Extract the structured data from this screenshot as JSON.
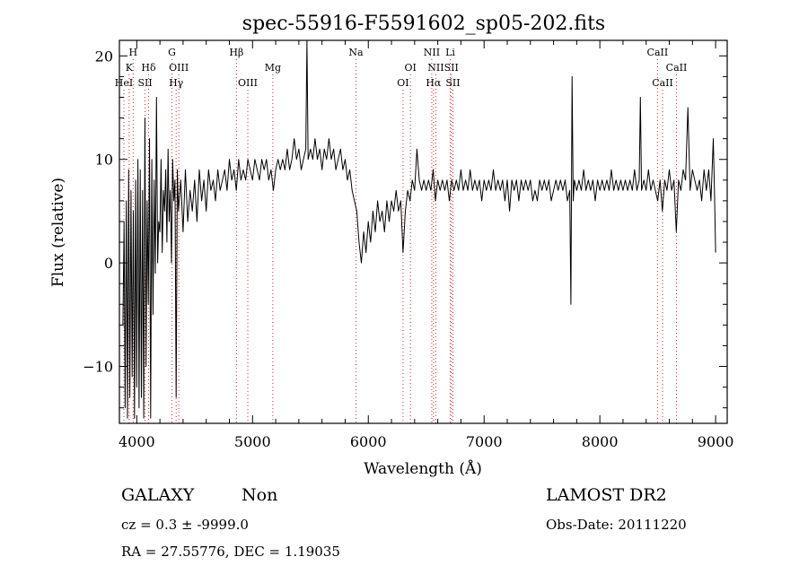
{
  "chart_data": {
    "type": "line",
    "title": "spec-55916-F5591602_sp05-202.fits",
    "xlabel": "Wavelength (Å)",
    "ylabel": "Flux (relative)",
    "xlim": [
      3850,
      9100
    ],
    "ylim": [
      -15.5,
      21.5
    ],
    "xticks": [
      {
        "value": 4000,
        "label": "4000"
      },
      {
        "value": 5000,
        "label": "5000"
      },
      {
        "value": 6000,
        "label": "6000"
      },
      {
        "value": 7000,
        "label": "7000"
      },
      {
        "value": 8000,
        "label": "8000"
      },
      {
        "value": 9000,
        "label": "9000"
      }
    ],
    "yticks": [
      {
        "value": -10,
        "label": "−10"
      },
      {
        "value": 0,
        "label": "0"
      },
      {
        "value": 10,
        "label": "10"
      },
      {
        "value": 20,
        "label": "20"
      }
    ],
    "grid": false,
    "series": [
      {
        "color": "#000000",
        "points": [
          [
            3880,
            -6
          ],
          [
            3890,
            4
          ],
          [
            3900,
            -14
          ],
          [
            3910,
            6
          ],
          [
            3920,
            -15
          ],
          [
            3930,
            9
          ],
          [
            3940,
            -13
          ],
          [
            3950,
            7
          ],
          [
            3960,
            -11
          ],
          [
            3970,
            5
          ],
          [
            3980,
            -15
          ],
          [
            3990,
            8
          ],
          [
            4000,
            -12
          ],
          [
            4010,
            10
          ],
          [
            4020,
            -14
          ],
          [
            4030,
            9
          ],
          [
            4040,
            -13
          ],
          [
            4050,
            7
          ],
          [
            4060,
            -15
          ],
          [
            4070,
            14
          ],
          [
            4080,
            -10
          ],
          [
            4090,
            6
          ],
          [
            4100,
            -4
          ],
          [
            4110,
            12
          ],
          [
            4120,
            -15
          ],
          [
            4130,
            10
          ],
          [
            4140,
            -5
          ],
          [
            4150,
            8
          ],
          [
            4160,
            -1
          ],
          [
            4170,
            16
          ],
          [
            4180,
            0
          ],
          [
            4190,
            4
          ],
          [
            4200,
            3
          ],
          [
            4210,
            10
          ],
          [
            4220,
            1
          ],
          [
            4230,
            7
          ],
          [
            4240,
            5
          ],
          [
            4250,
            9
          ],
          [
            4260,
            2
          ],
          [
            4270,
            11
          ],
          [
            4280,
            4
          ],
          [
            4290,
            7
          ],
          [
            4300,
            0
          ],
          [
            4310,
            10
          ],
          [
            4320,
            6
          ],
          [
            4330,
            8
          ],
          [
            4340,
            -13
          ],
          [
            4350,
            9
          ],
          [
            4360,
            5
          ],
          [
            4380,
            8
          ],
          [
            4400,
            3
          ],
          [
            4420,
            9
          ],
          [
            4440,
            4
          ],
          [
            4460,
            7
          ],
          [
            4480,
            5
          ],
          [
            4500,
            8
          ],
          [
            4520,
            4
          ],
          [
            4540,
            9
          ],
          [
            4560,
            6
          ],
          [
            4580,
            8
          ],
          [
            4600,
            5
          ],
          [
            4620,
            9
          ],
          [
            4640,
            7
          ],
          [
            4660,
            8
          ],
          [
            4680,
            6
          ],
          [
            4700,
            9
          ],
          [
            4720,
            7
          ],
          [
            4740,
            8
          ],
          [
            4760,
            9
          ],
          [
            4780,
            7
          ],
          [
            4800,
            10
          ],
          [
            4820,
            8
          ],
          [
            4840,
            9
          ],
          [
            4860,
            7
          ],
          [
            4880,
            10
          ],
          [
            4900,
            8
          ],
          [
            4920,
            9
          ],
          [
            4940,
            8
          ],
          [
            4960,
            10
          ],
          [
            4980,
            9
          ],
          [
            5000,
            8
          ],
          [
            5020,
            10
          ],
          [
            5040,
            9
          ],
          [
            5060,
            8
          ],
          [
            5080,
            10
          ],
          [
            5100,
            9
          ],
          [
            5120,
            10
          ],
          [
            5140,
            8
          ],
          [
            5160,
            9
          ],
          [
            5180,
            7
          ],
          [
            5200,
            9
          ],
          [
            5220,
            10
          ],
          [
            5240,
            9
          ],
          [
            5260,
            10
          ],
          [
            5280,
            9
          ],
          [
            5300,
            11
          ],
          [
            5320,
            9
          ],
          [
            5340,
            10
          ],
          [
            5360,
            12
          ],
          [
            5380,
            10
          ],
          [
            5400,
            11
          ],
          [
            5420,
            9
          ],
          [
            5440,
            10
          ],
          [
            5460,
            11
          ],
          [
            5470,
            21.5
          ],
          [
            5480,
            10
          ],
          [
            5500,
            11
          ],
          [
            5520,
            10
          ],
          [
            5540,
            12
          ],
          [
            5560,
            10
          ],
          [
            5580,
            11
          ],
          [
            5600,
            9
          ],
          [
            5620,
            11
          ],
          [
            5640,
            10
          ],
          [
            5660,
            12
          ],
          [
            5680,
            10
          ],
          [
            5700,
            11
          ],
          [
            5720,
            9
          ],
          [
            5740,
            10
          ],
          [
            5760,
            11
          ],
          [
            5780,
            9
          ],
          [
            5800,
            10
          ],
          [
            5820,
            8
          ],
          [
            5840,
            9
          ],
          [
            5860,
            7
          ],
          [
            5880,
            6
          ],
          [
            5900,
            5
          ],
          [
            5920,
            2
          ],
          [
            5940,
            0
          ],
          [
            5960,
            3
          ],
          [
            5980,
            1
          ],
          [
            6000,
            4
          ],
          [
            6020,
            2
          ],
          [
            6040,
            5
          ],
          [
            6060,
            3
          ],
          [
            6080,
            6
          ],
          [
            6100,
            4
          ],
          [
            6120,
            5
          ],
          [
            6140,
            3
          ],
          [
            6160,
            6
          ],
          [
            6180,
            4
          ],
          [
            6200,
            6
          ],
          [
            6220,
            5
          ],
          [
            6240,
            7
          ],
          [
            6260,
            5
          ],
          [
            6280,
            6
          ],
          [
            6300,
            1
          ],
          [
            6320,
            5
          ],
          [
            6340,
            7
          ],
          [
            6360,
            6
          ],
          [
            6380,
            8
          ],
          [
            6400,
            7
          ],
          [
            6420,
            11
          ],
          [
            6440,
            8
          ],
          [
            6460,
            7
          ],
          [
            6480,
            8
          ],
          [
            6500,
            7
          ],
          [
            6520,
            8
          ],
          [
            6540,
            7
          ],
          [
            6560,
            9
          ],
          [
            6580,
            6
          ],
          [
            6600,
            8
          ],
          [
            6620,
            7
          ],
          [
            6640,
            8
          ],
          [
            6660,
            7
          ],
          [
            6680,
            8
          ],
          [
            6700,
            6
          ],
          [
            6720,
            8
          ],
          [
            6740,
            7
          ],
          [
            6760,
            8
          ],
          [
            6780,
            7
          ],
          [
            6800,
            9
          ],
          [
            6820,
            7
          ],
          [
            6840,
            8
          ],
          [
            6860,
            7
          ],
          [
            6880,
            9
          ],
          [
            6900,
            7
          ],
          [
            6920,
            8
          ],
          [
            6940,
            7
          ],
          [
            6960,
            8
          ],
          [
            6980,
            6
          ],
          [
            7000,
            8
          ],
          [
            7020,
            7
          ],
          [
            7040,
            8
          ],
          [
            7060,
            7
          ],
          [
            7080,
            9
          ],
          [
            7100,
            7
          ],
          [
            7120,
            8
          ],
          [
            7140,
            7
          ],
          [
            7160,
            8
          ],
          [
            7180,
            6
          ],
          [
            7200,
            8
          ],
          [
            7220,
            5
          ],
          [
            7240,
            8
          ],
          [
            7260,
            7
          ],
          [
            7280,
            8
          ],
          [
            7300,
            6
          ],
          [
            7320,
            8
          ],
          [
            7340,
            7
          ],
          [
            7360,
            8
          ],
          [
            7380,
            7
          ],
          [
            7400,
            8
          ],
          [
            7420,
            6
          ],
          [
            7440,
            7
          ],
          [
            7460,
            6
          ],
          [
            7480,
            8
          ],
          [
            7500,
            7
          ],
          [
            7520,
            8
          ],
          [
            7540,
            7
          ],
          [
            7560,
            8
          ],
          [
            7580,
            6
          ],
          [
            7600,
            7
          ],
          [
            7620,
            8
          ],
          [
            7640,
            7
          ],
          [
            7660,
            8
          ],
          [
            7680,
            7
          ],
          [
            7700,
            8
          ],
          [
            7720,
            6
          ],
          [
            7740,
            7
          ],
          [
            7750,
            -4
          ],
          [
            7760,
            18
          ],
          [
            7770,
            6
          ],
          [
            7780,
            8
          ],
          [
            7800,
            7
          ],
          [
            7820,
            8
          ],
          [
            7840,
            7
          ],
          [
            7860,
            9
          ],
          [
            7880,
            7
          ],
          [
            7900,
            8
          ],
          [
            7920,
            7
          ],
          [
            7940,
            8
          ],
          [
            7960,
            6
          ],
          [
            7980,
            8
          ],
          [
            8000,
            7
          ],
          [
            8020,
            8
          ],
          [
            8040,
            7
          ],
          [
            8060,
            8
          ],
          [
            8080,
            7
          ],
          [
            8100,
            9
          ],
          [
            8120,
            7
          ],
          [
            8140,
            8
          ],
          [
            8160,
            7
          ],
          [
            8180,
            8
          ],
          [
            8200,
            7
          ],
          [
            8220,
            8
          ],
          [
            8240,
            7
          ],
          [
            8260,
            8
          ],
          [
            8280,
            7
          ],
          [
            8300,
            9
          ],
          [
            8320,
            7
          ],
          [
            8340,
            8
          ],
          [
            8350,
            16
          ],
          [
            8360,
            7
          ],
          [
            8380,
            8
          ],
          [
            8400,
            7
          ],
          [
            8420,
            9
          ],
          [
            8440,
            7
          ],
          [
            8460,
            8
          ],
          [
            8480,
            7
          ],
          [
            8500,
            6
          ],
          [
            8520,
            8
          ],
          [
            8540,
            5
          ],
          [
            8560,
            8
          ],
          [
            8580,
            7
          ],
          [
            8600,
            9
          ],
          [
            8620,
            7
          ],
          [
            8640,
            8
          ],
          [
            8660,
            3
          ],
          [
            8680,
            8
          ],
          [
            8700,
            7
          ],
          [
            8720,
            9
          ],
          [
            8740,
            8
          ],
          [
            8760,
            15
          ],
          [
            8780,
            7
          ],
          [
            8800,
            9
          ],
          [
            8820,
            8
          ],
          [
            8840,
            7
          ],
          [
            8860,
            8
          ],
          [
            8880,
            6
          ],
          [
            8900,
            9
          ],
          [
            8920,
            7
          ],
          [
            8940,
            9
          ],
          [
            8960,
            6
          ],
          [
            8980,
            12
          ],
          [
            8990,
            7
          ],
          [
            9000,
            1
          ]
        ]
      }
    ],
    "line_markers": {
      "color": "#d62728",
      "lines": [
        {
          "wl": 3889,
          "label": "HeI",
          "row": 3
        },
        {
          "wl": 3934,
          "label": "K",
          "row": 2
        },
        {
          "wl": 3969,
          "label": "H",
          "row": 1
        },
        {
          "wl": 4072,
          "label": "SII",
          "row": 3
        },
        {
          "wl": 4102,
          "label": "Hδ",
          "row": 2
        },
        {
          "wl": 4304,
          "label": "G",
          "row": 1
        },
        {
          "wl": 4340,
          "label": "Hγ",
          "row": 3
        },
        {
          "wl": 4363,
          "label": "OIII",
          "row": 2
        },
        {
          "wl": 4861,
          "label": "Hβ",
          "row": 1
        },
        {
          "wl": 4959,
          "label": "OIII",
          "row": 3
        },
        {
          "wl": 5175,
          "label": "Mg",
          "row": 2
        },
        {
          "wl": 5893,
          "label": "Na",
          "row": 1
        },
        {
          "wl": 6300,
          "label": "OI",
          "row": 3
        },
        {
          "wl": 6364,
          "label": "OI",
          "row": 2
        },
        {
          "wl": 6548,
          "label": "NII",
          "row": 1
        },
        {
          "wl": 6563,
          "label": "Hα",
          "row": 3
        },
        {
          "wl": 6583,
          "label": "NII",
          "row": 2
        },
        {
          "wl": 6708,
          "label": "Li",
          "row": 1
        },
        {
          "wl": 6717,
          "label": "SII",
          "row": 2
        },
        {
          "wl": 6731,
          "label": "SII",
          "row": 3
        },
        {
          "wl": 8498,
          "label": "CaII",
          "row": 1
        },
        {
          "wl": 8542,
          "label": "CaII",
          "row": 3
        },
        {
          "wl": 8662,
          "label": "CaII",
          "row": 2
        }
      ]
    }
  },
  "footer": {
    "object_class": "GALAXY",
    "subclass": "Non",
    "survey": "LAMOST DR2",
    "redshift": "cz = 0.3 ± -9999.0",
    "obs_date": "Obs-Date: 20111220",
    "coords": "RA =  27.55776, DEC =   1.19035"
  }
}
